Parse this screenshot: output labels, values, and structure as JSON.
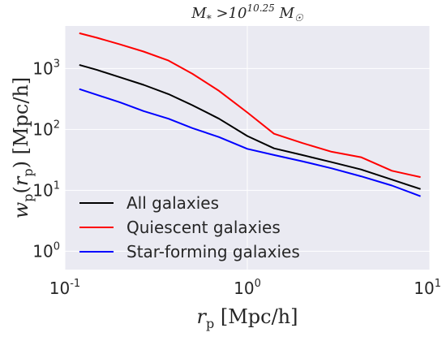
{
  "chart_data": {
    "type": "line",
    "title": "M* >10^10.25 M☉",
    "xlabel": "r_p  [Mpc/h]",
    "ylabel": "w_p(r_p)  [Mpc/h]",
    "xscale": "log",
    "yscale": "log",
    "xlim": [
      0.1,
      10
    ],
    "ylim": [
      0.5,
      5000
    ],
    "grid": true,
    "legend": "lower-left",
    "x_ticks": [
      {
        "base": "10",
        "exp": "-1",
        "value": 0.1
      },
      {
        "base": "10",
        "exp": "0",
        "value": 1
      },
      {
        "base": "10",
        "exp": "1",
        "value": 10
      }
    ],
    "y_ticks": [
      {
        "base": "10",
        "exp": "0",
        "value": 1
      },
      {
        "base": "10",
        "exp": "1",
        "value": 10
      },
      {
        "base": "10",
        "exp": "2",
        "value": 100
      },
      {
        "base": "10",
        "exp": "3",
        "value": 1000
      }
    ],
    "series": [
      {
        "name": "All galaxies",
        "color": "#000000",
        "x": [
          0.12,
          0.15,
          0.2,
          0.27,
          0.37,
          0.5,
          0.7,
          1.0,
          1.4,
          2.0,
          2.9,
          4.2,
          6.2,
          8.9
        ],
        "y": [
          1150,
          950,
          720,
          540,
          380,
          250,
          150,
          78,
          49,
          38,
          29,
          22,
          15,
          10.5
        ]
      },
      {
        "name": "Quiescent galaxies",
        "color": "#ff0000",
        "x": [
          0.12,
          0.15,
          0.2,
          0.27,
          0.37,
          0.5,
          0.7,
          1.0,
          1.4,
          2.0,
          2.9,
          4.2,
          6.2,
          8.9
        ],
        "y": [
          3800,
          3200,
          2500,
          1900,
          1350,
          820,
          430,
          190,
          85,
          60,
          43,
          35,
          21,
          16.5
        ]
      },
      {
        "name": "Star-forming galaxies",
        "color": "#0000ff",
        "x": [
          0.12,
          0.15,
          0.2,
          0.27,
          0.37,
          0.5,
          0.7,
          1.0,
          1.4,
          2.0,
          2.9,
          4.2,
          6.2,
          8.9
        ],
        "y": [
          460,
          370,
          280,
          200,
          150,
          105,
          75,
          48,
          38,
          30,
          23,
          17,
          12,
          8
        ]
      }
    ]
  }
}
